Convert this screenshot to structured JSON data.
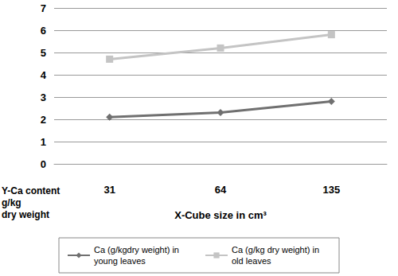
{
  "chart_data": {
    "type": "line",
    "x_label": "X-Cube size in cm³",
    "y_label": "Y-Ca content\ng/kg\ndry weight",
    "categories": [
      "31",
      "64",
      "135"
    ],
    "series": [
      {
        "name": "Ca (g/kgdry weight) in young leaves",
        "color": "#707070",
        "marker": "diamond",
        "values": [
          2.1,
          2.3,
          2.8
        ]
      },
      {
        "name": "Ca (g/kg dry weight) in old leaves",
        "color": "#c4c4c4",
        "marker": "square",
        "values": [
          4.7,
          5.2,
          5.8
        ]
      }
    ],
    "ylim": [
      0,
      7
    ],
    "yticks": [
      0,
      1,
      2,
      3,
      4,
      5,
      6,
      7
    ],
    "grid": true,
    "legend": "bottom"
  }
}
